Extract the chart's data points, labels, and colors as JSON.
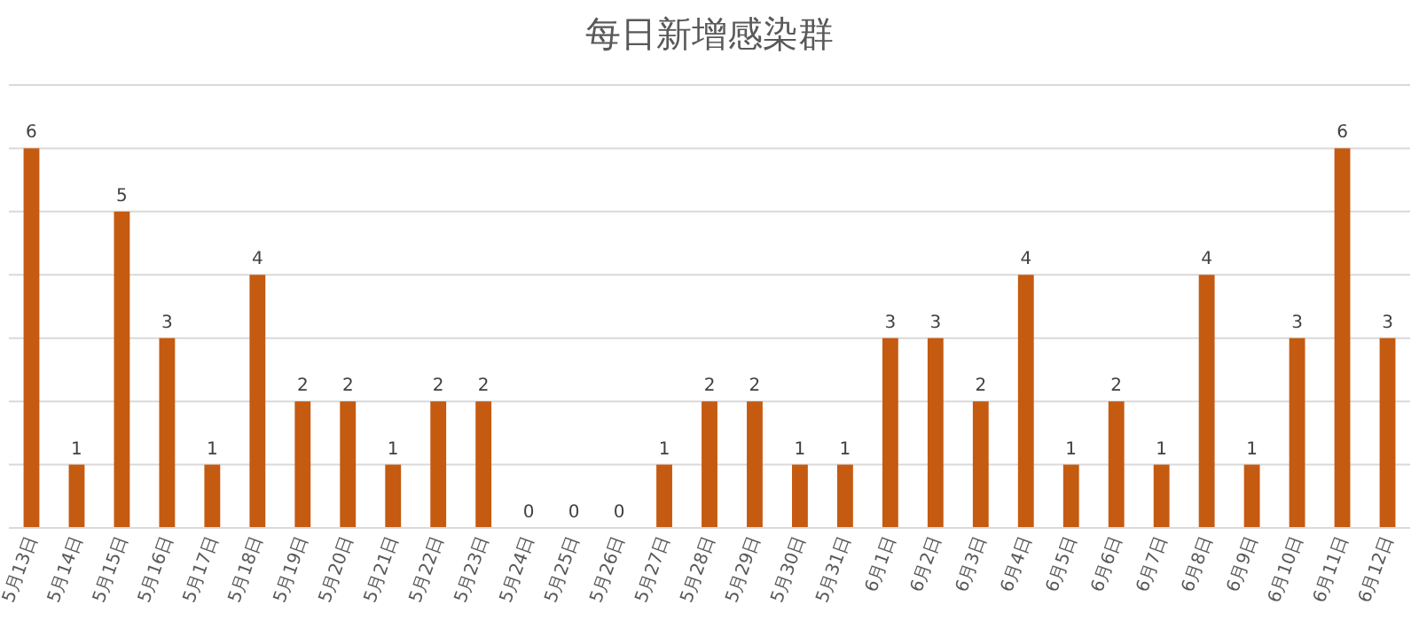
{
  "chart_data": {
    "type": "bar",
    "title": "每日新增感染群",
    "categories": [
      "5月13日",
      "5月14日",
      "5月15日",
      "5月16日",
      "5月17日",
      "5月18日",
      "5月19日",
      "5月20日",
      "5月21日",
      "5月22日",
      "5月23日",
      "5月24日",
      "5月25日",
      "5月26日",
      "5月27日",
      "5月28日",
      "5月29日",
      "5月30日",
      "5月31日",
      "6月1日",
      "6月2日",
      "6月3日",
      "6月4日",
      "6月5日",
      "6月6日",
      "6月7日",
      "6月8日",
      "6月9日",
      "6月10日",
      "6月11日",
      "6月12日"
    ],
    "values": [
      6,
      1,
      5,
      3,
      1,
      4,
      2,
      2,
      1,
      2,
      2,
      0,
      0,
      0,
      1,
      2,
      2,
      1,
      1,
      3,
      3,
      2,
      4,
      1,
      2,
      1,
      4,
      1,
      3,
      6,
      3
    ],
    "color": "#c55a11",
    "ylim": [
      0,
      7
    ],
    "yticks": [
      {
        "value": 0,
        "label": null
      },
      {
        "value": 1,
        "label": null
      },
      {
        "value": 2,
        "label": null
      },
      {
        "value": 3,
        "label": null
      },
      {
        "value": 4,
        "label": null
      },
      {
        "value": 5,
        "label": null
      },
      {
        "value": 6,
        "label": null
      },
      {
        "value": 7,
        "label": null
      }
    ],
    "grid": "y",
    "tick_labels": "x",
    "data_labels": true
  }
}
